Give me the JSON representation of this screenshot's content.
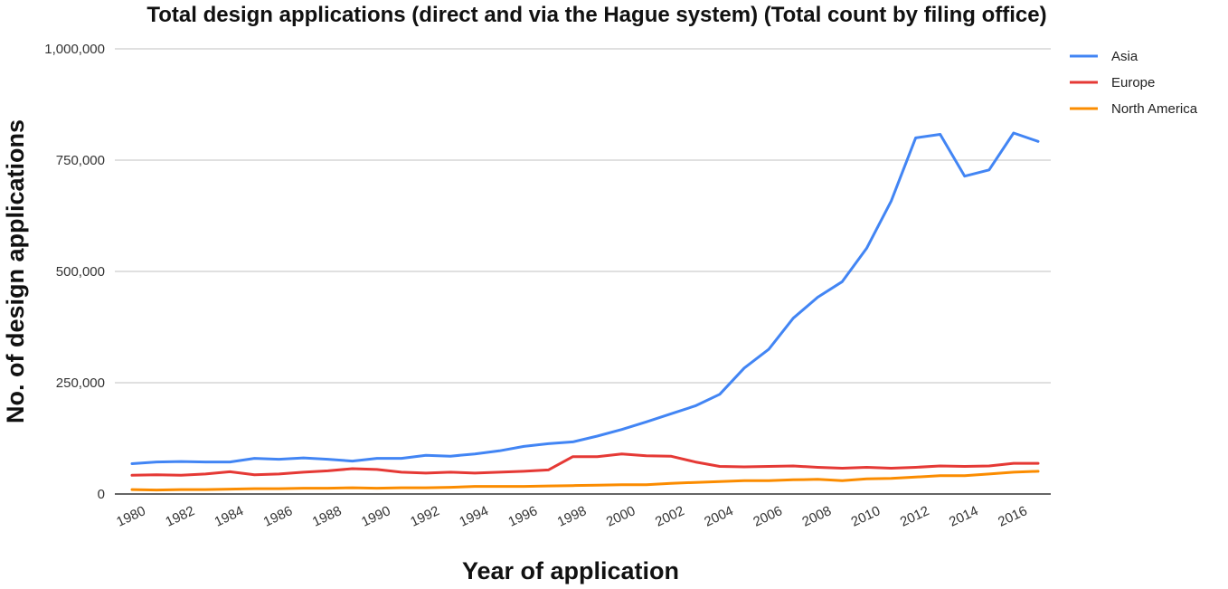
{
  "chart_data": {
    "type": "line",
    "title": "Total design applications (direct and via the Hague system) (Total count by filing office)",
    "xlabel": "Year of application",
    "ylabel": "No. of design applications",
    "x": [
      1980,
      1981,
      1982,
      1983,
      1984,
      1985,
      1986,
      1987,
      1988,
      1989,
      1990,
      1991,
      1992,
      1993,
      1994,
      1995,
      1996,
      1997,
      1998,
      1999,
      2000,
      2001,
      2002,
      2003,
      2004,
      2005,
      2006,
      2007,
      2008,
      2009,
      2010,
      2011,
      2012,
      2013,
      2014,
      2015,
      2016,
      2017
    ],
    "xticks": [
      "1980",
      "1982",
      "1984",
      "1986",
      "1988",
      "1990",
      "1992",
      "1994",
      "1996",
      "1998",
      "2000",
      "2002",
      "2004",
      "2006",
      "2008",
      "2010",
      "2012",
      "2014",
      "2016"
    ],
    "yticks": [
      0,
      250000,
      500000,
      750000,
      1000000
    ],
    "ytick_labels": [
      "0",
      "250,000",
      "500,000",
      "750,000",
      "1,000,000"
    ],
    "ylim": [
      0,
      1000000
    ],
    "grid": true,
    "legend_position": "right",
    "series": [
      {
        "name": "Asia",
        "color": "#4285f4",
        "values": [
          68000,
          72000,
          73000,
          72000,
          72000,
          80000,
          78000,
          81000,
          78000,
          74000,
          80000,
          80000,
          87000,
          85000,
          90000,
          97000,
          107000,
          113000,
          117000,
          130000,
          145000,
          162000,
          180000,
          198000,
          224000,
          283000,
          325000,
          395000,
          442000,
          477000,
          552000,
          658000,
          800000,
          808000,
          714000,
          728000,
          811000,
          792000
        ]
      },
      {
        "name": "Europe",
        "color": "#e53935",
        "values": [
          42000,
          43000,
          42000,
          45000,
          50000,
          43000,
          45000,
          49000,
          52000,
          57000,
          55000,
          49000,
          47000,
          49000,
          47000,
          49000,
          51000,
          54000,
          84000,
          84000,
          90000,
          86000,
          85000,
          72000,
          62000,
          61000,
          62000,
          63000,
          60000,
          58000,
          60000,
          58000,
          60000,
          63000,
          62000,
          63000,
          69000,
          69000
        ]
      },
      {
        "name": "North America",
        "color": "#fb8c00",
        "values": [
          10000,
          9000,
          10000,
          10000,
          11000,
          12000,
          12000,
          13000,
          13000,
          14000,
          13000,
          14000,
          14000,
          15000,
          17000,
          17000,
          17000,
          18000,
          19000,
          20000,
          21000,
          21000,
          24000,
          26000,
          28000,
          30000,
          30000,
          32000,
          33000,
          30000,
          34000,
          35000,
          38000,
          41000,
          41000,
          45000,
          49000,
          51000
        ]
      }
    ]
  }
}
